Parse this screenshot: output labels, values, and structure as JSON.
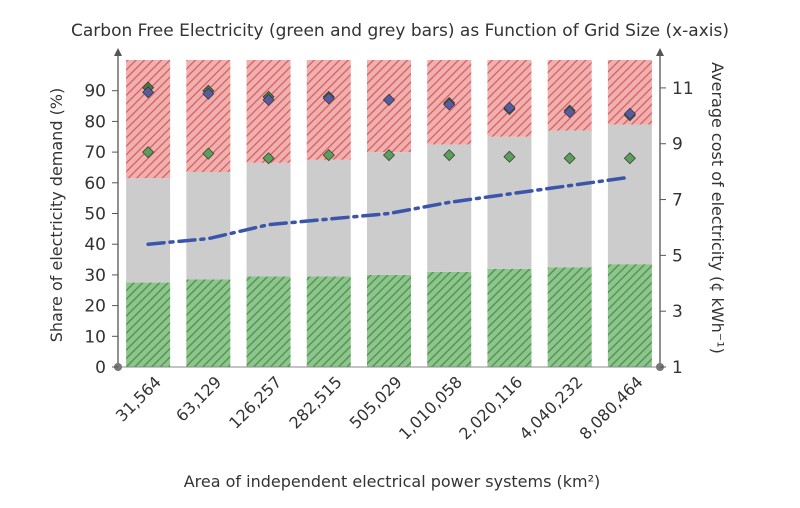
{
  "chart_data": {
    "type": "bar",
    "title": "Carbon Free Electricity (green and grey bars) as Function of Grid Size (x-axis)",
    "xlabel": "Area of independent electrical power systems (km²)",
    "ylabel": "Share of electricity demand (%)",
    "y2label": "Average cost of electricity (¢ kWh⁻¹)",
    "ylim": [
      0,
      100
    ],
    "y2lim": [
      1,
      12
    ],
    "y_ticks": [
      "0",
      "10",
      "20",
      "30",
      "40",
      "50",
      "60",
      "70",
      "80",
      "90"
    ],
    "y2_ticks": [
      "1",
      "3",
      "5",
      "7",
      "9",
      "11"
    ],
    "categories": [
      "31,564",
      "63,129",
      "126,257",
      "282,515",
      "505,029",
      "1,010,058",
      "2,020,116",
      "4,040,232",
      "8,080,464"
    ],
    "series": [
      {
        "name": "",
        "color": "#6aaa6a",
        "pattern": "green-hatch",
        "values": [
          27.5,
          28.5,
          29.5,
          29.5,
          30,
          31,
          32,
          32.5,
          33.5
        ]
      },
      {
        "name": "",
        "color": "#cccccc",
        "values": [
          34,
          35,
          37,
          38,
          40,
          41.5,
          43,
          44.5,
          45.5
        ]
      },
      {
        "name": "",
        "color": "#e38a8a",
        "pattern": "red-hatch",
        "values": [
          38.5,
          36.5,
          33.5,
          32.5,
          30,
          27.5,
          25,
          23,
          21
        ]
      }
    ],
    "markers": [
      {
        "name": "",
        "color": "#4a7a3a",
        "shape": "diamond",
        "values": [
          91,
          90,
          88,
          88,
          87,
          86,
          84,
          83.5,
          82
        ]
      },
      {
        "name": "",
        "color": "#5a5aa0",
        "shape": "diamond",
        "values": [
          89.5,
          89,
          87,
          87.5,
          87,
          85.5,
          84.5,
          83,
          82.5
        ]
      },
      {
        "name": "",
        "color": "#5aa05a",
        "shape": "diamond",
        "values": [
          70,
          69.5,
          68,
          69,
          69,
          69,
          68.5,
          68,
          68
        ]
      }
    ],
    "line": {
      "name": "",
      "color": "#3a55aa",
      "style": "dash-dot",
      "values": [
        5.4,
        5.6,
        6.1,
        6.3,
        6.5,
        6.9,
        7.2,
        7.5,
        7.8
      ]
    },
    "grid": false
  }
}
